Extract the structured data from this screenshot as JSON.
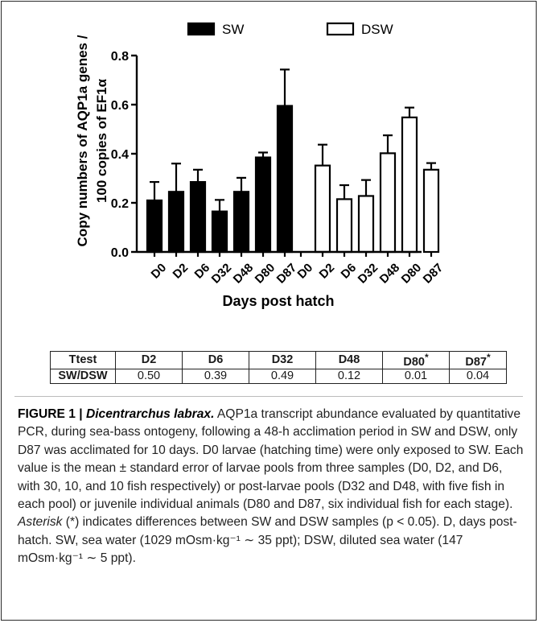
{
  "chart_data": {
    "type": "bar",
    "ylabel_line1": "Copy numbers of AQP1a genes /",
    "ylabel_line2": "100 copies of EF1α",
    "xlabel": "Days post hatch",
    "ylim": [
      0,
      0.8
    ],
    "yticks": [
      "0.0",
      "0.2",
      "0.4",
      "0.6",
      "0.8"
    ],
    "legend": {
      "placement": "top",
      "entries": [
        "SW",
        "DSW"
      ]
    },
    "series": [
      {
        "name": "SW",
        "color": "#000000",
        "categories": [
          "D0",
          "D2",
          "D6",
          "D32",
          "D48",
          "D80",
          "D87"
        ],
        "values": [
          0.21,
          0.245,
          0.285,
          0.165,
          0.245,
          0.385,
          0.595
        ],
        "errors": [
          0.075,
          0.115,
          0.05,
          0.047,
          0.057,
          0.02,
          0.148
        ]
      },
      {
        "name": "DSW",
        "color": "#ffffff",
        "categories": [
          "D0",
          "D2",
          "D6",
          "D32",
          "D48",
          "D80",
          "D87"
        ],
        "values": [
          0,
          0.352,
          0.215,
          0.228,
          0.402,
          0.548,
          0.335
        ],
        "errors": [
          0,
          0.085,
          0.057,
          0.065,
          0.073,
          0.04,
          0.027
        ]
      }
    ]
  },
  "ttest": {
    "header": [
      "Ttest",
      "D2",
      "D6",
      "D32",
      "D48",
      "D80",
      "D87"
    ],
    "asterisk_cols": [
      5,
      6
    ],
    "row_label": "SW/DSW",
    "row_values": [
      "0.50",
      "0.39",
      "0.49",
      "0.12",
      "0.01",
      "0.04"
    ]
  },
  "caption": {
    "figure_label": "FIGURE 1 | ",
    "species": "Dicentrarchus labrax.",
    "part1": " AQP1a transcript abundance evaluated by quantitative PCR, during sea-bass ontogeny, following a 48-h acclimation period in SW and DSW, only D87 was acclimated for 10 days. D0 larvae (hatching time) were only exposed to SW. Each value is the mean ± standard error of larvae pools from three samples (D0, D2, and D6, with 30, 10, and 10 fish respectively) or post-larvae pools (D32 and D48, with five fish in each pool) or juvenile individual animals (D80 and D87, six individual fish for each stage). ",
    "asterisk_word": "Asterisk",
    "part2": " (*) indicates differences between SW and DSW samples (p < 0.05). D, days post-hatch. SW, sea water (1029 mOsm·kg⁻¹ ∼ 35 ppt); DSW, diluted sea water (147 mOsm·kg⁻¹ ∼ 5 ppt)."
  }
}
